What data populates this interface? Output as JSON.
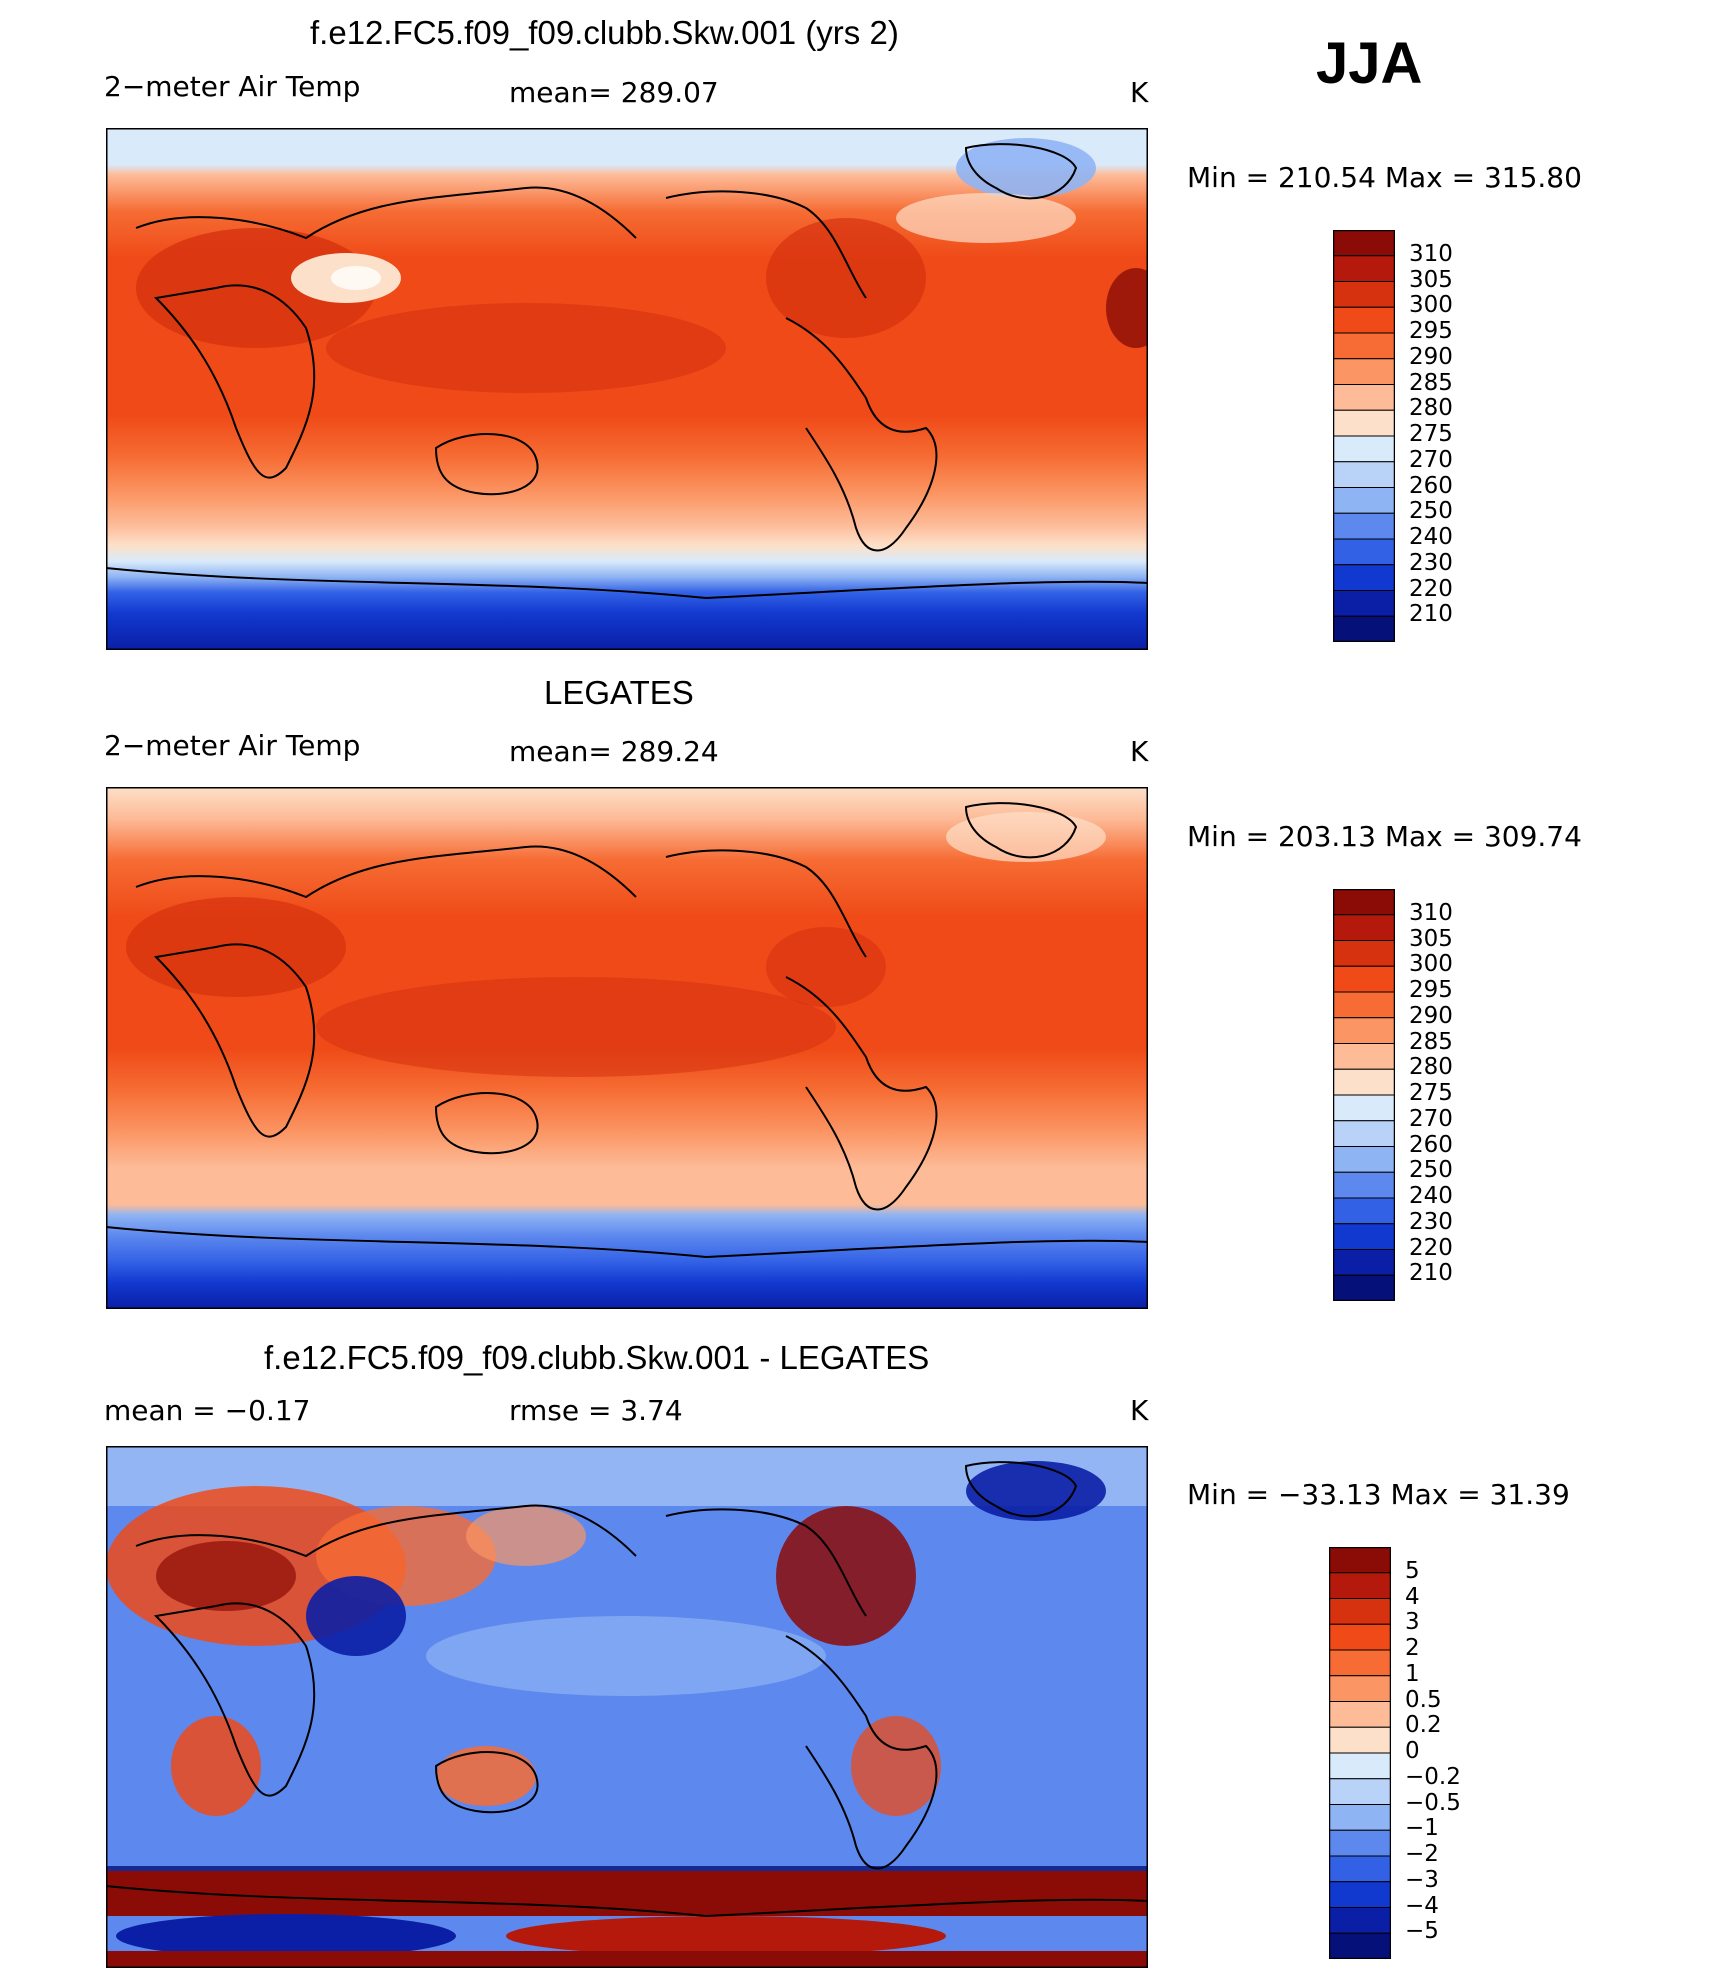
{
  "season": "JJA",
  "panels": [
    {
      "title": "f.e12.FC5.f09_f09.clubb.Skw.001 (yrs 2)",
      "left_label": "2−meter Air Temp",
      "center_label": "mean=  289.07",
      "unit": "K",
      "minmax": "Min  =  210.54  Max  =  315.80",
      "colorbar_labels": [
        "310",
        "305",
        "300",
        "295",
        "290",
        "285",
        "280",
        "275",
        "270",
        "260",
        "250",
        "240",
        "230",
        "220",
        "210"
      ],
      "colorbar_colors": [
        "#8b0c07",
        "#b5190b",
        "#d63210",
        "#ef4a17",
        "#f66c34",
        "#fb9563",
        "#fdbb98",
        "#fde0c9",
        "#d9eafb",
        "#b9d3f8",
        "#8fb4f4",
        "#5d88ee",
        "#3261e6",
        "#1239cf",
        "#0a1fa6",
        "#061079"
      ]
    },
    {
      "title": "LEGATES",
      "left_label": "2−meter Air Temp",
      "center_label": "mean=  289.24",
      "unit": "K",
      "minmax": "Min  =  203.13  Max  =  309.74",
      "colorbar_labels": [
        "310",
        "305",
        "300",
        "295",
        "290",
        "285",
        "280",
        "275",
        "270",
        "260",
        "250",
        "240",
        "230",
        "220",
        "210"
      ],
      "colorbar_colors": [
        "#8b0c07",
        "#b5190b",
        "#d63210",
        "#ef4a17",
        "#f66c34",
        "#fb9563",
        "#fdbb98",
        "#fde0c9",
        "#d9eafb",
        "#b9d3f8",
        "#8fb4f4",
        "#5d88ee",
        "#3261e6",
        "#1239cf",
        "#0a1fa6",
        "#061079"
      ]
    },
    {
      "title": "f.e12.FC5.f09_f09.clubb.Skw.001 - LEGATES",
      "left_label": "mean =    −0.17",
      "center_label": "rmse =     3.74",
      "unit": "K",
      "minmax": "Min  =  −33.13  Max  =    31.39",
      "colorbar_labels": [
        "5",
        "4",
        "3",
        "2",
        "1",
        "0.5",
        "0.2",
        "0",
        "−0.2",
        "−0.5",
        "−1",
        "−2",
        "−3",
        "−4",
        "−5"
      ],
      "colorbar_colors": [
        "#8b0c07",
        "#b5190b",
        "#d63210",
        "#ef4a17",
        "#f66c34",
        "#fb9563",
        "#fdbb98",
        "#fde0c9",
        "#d9eafb",
        "#b9d3f8",
        "#8fb4f4",
        "#5d88ee",
        "#3261e6",
        "#1239cf",
        "#0a1fa6",
        "#061079"
      ]
    }
  ]
}
